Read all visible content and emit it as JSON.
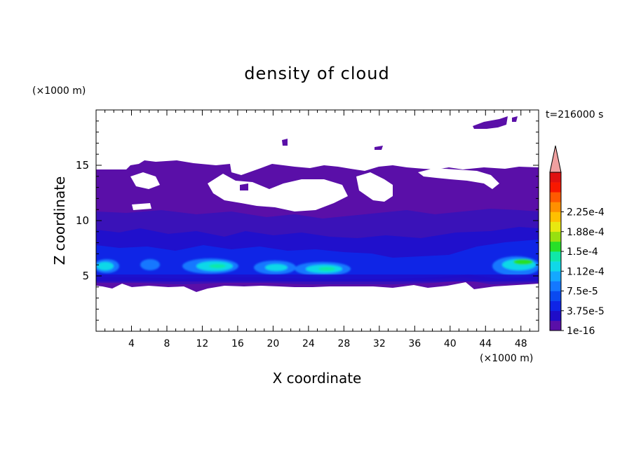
{
  "chart_data": {
    "type": "heatmap",
    "title": "density of cloud",
    "xlabel": "X coordinate",
    "ylabel": "Z coordinate",
    "x_unit": "(×1000 m)",
    "y_unit": "(×1000 m)",
    "time_label": "t=216000 s",
    "xlim": [
      0,
      50
    ],
    "ylim": [
      0,
      20
    ],
    "x_ticks": [
      4,
      8,
      12,
      16,
      20,
      24,
      28,
      32,
      36,
      40,
      44,
      48
    ],
    "y_ticks": [
      5,
      10,
      15
    ],
    "colorbar": {
      "tick_labels": [
        "1e-16",
        "3.75e-5",
        "7.5e-5",
        "1.12e-4",
        "1.5e-4",
        "1.88e-4",
        "2.25e-4"
      ],
      "levels_colors": [
        "#5a0fa8",
        "#1f0dc8",
        "#0f25e6",
        "#0a4af0",
        "#1478ff",
        "#14a8ff",
        "#10d8e8",
        "#10e8a8",
        "#28e028",
        "#98e010",
        "#e8e810",
        "#ffc000",
        "#ff9000",
        "#ff5a00",
        "#f81800",
        "#e01010"
      ],
      "extend_color": "#f0a0a0"
    }
  }
}
